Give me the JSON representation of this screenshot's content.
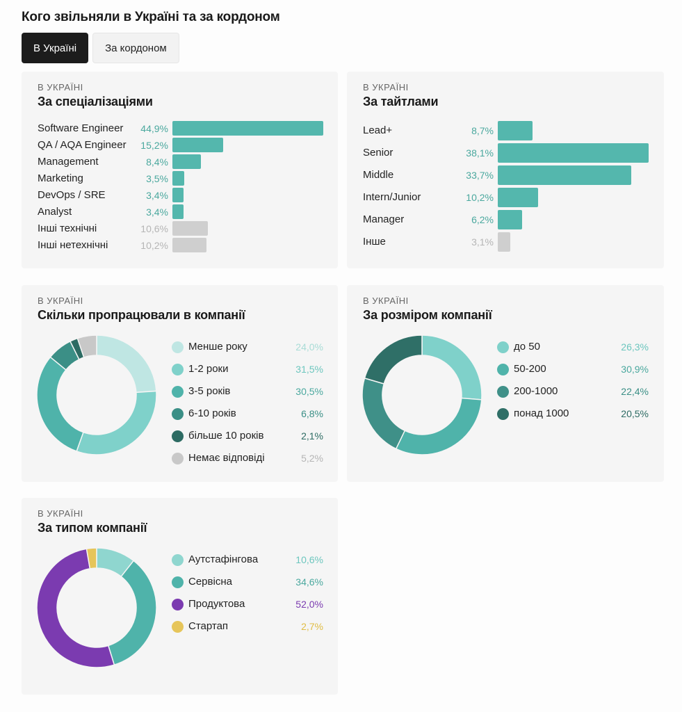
{
  "header": {
    "title": "Кого звільняли в Україні та за кордоном",
    "tabs": [
      {
        "label": "В Україні",
        "active": true
      },
      {
        "label": "За кордоном",
        "active": false
      }
    ]
  },
  "colors": {
    "teal": "#54b7ad",
    "gray": "#cfcfcf",
    "gray_text": "#b5b5b5",
    "purple": "#7b3bb0",
    "yellow": "#e6c55a"
  },
  "chart_data": [
    {
      "id": "specializations",
      "type": "bar",
      "kicker": "В УКРАЇНІ",
      "title": "За спеціалізаціями",
      "categories": [
        "Software Engineer",
        "QA / AQA Engineer",
        "Management",
        "Marketing",
        "DevOps / SRE",
        "Analyst",
        "Інші технічні",
        "Інші нетехнічні"
      ],
      "values": [
        44.9,
        15.2,
        8.4,
        3.5,
        3.4,
        3.4,
        10.6,
        10.2
      ],
      "labels": [
        "44,9%",
        "15,2%",
        "8,4%",
        "3,5%",
        "3,4%",
        "3,4%",
        "10,6%",
        "10,2%"
      ],
      "colors": [
        "#54b7ad",
        "#54b7ad",
        "#54b7ad",
        "#54b7ad",
        "#54b7ad",
        "#54b7ad",
        "#cfcfcf",
        "#cfcfcf"
      ],
      "label_colors": [
        "#4aa89e",
        "#4aa89e",
        "#4aa89e",
        "#4aa89e",
        "#4aa89e",
        "#4aa89e",
        "#b5b5b5",
        "#b5b5b5"
      ]
    },
    {
      "id": "titles",
      "type": "bar",
      "kicker": "В УКРАЇНІ",
      "title": "За тайтлами",
      "categories": [
        "Lead+",
        "Senior",
        "Middle",
        "Intern/Junior",
        "Manager",
        "Інше"
      ],
      "values": [
        8.7,
        38.1,
        33.7,
        10.2,
        6.2,
        3.1
      ],
      "labels": [
        "8,7%",
        "38,1%",
        "33,7%",
        "10,2%",
        "6,2%",
        "3,1%"
      ],
      "colors": [
        "#54b7ad",
        "#54b7ad",
        "#54b7ad",
        "#54b7ad",
        "#54b7ad",
        "#cfcfcf"
      ],
      "label_colors": [
        "#4aa89e",
        "#4aa89e",
        "#4aa89e",
        "#4aa89e",
        "#4aa89e",
        "#b5b5b5"
      ]
    },
    {
      "id": "tenure",
      "type": "pie",
      "kicker": "В УКРАЇНІ",
      "title": "Скільки пропрацювали в компанії",
      "categories": [
        "Менше року",
        "1-2 роки",
        "3-5 років",
        "6-10 років",
        "більше 10 років",
        "Немає відповіді"
      ],
      "values": [
        24.0,
        31.5,
        30.5,
        6.8,
        2.1,
        5.2
      ],
      "labels": [
        "24,0%",
        "31,5%",
        "30,5%",
        "6,8%",
        "2,1%",
        "5,2%"
      ],
      "colors": [
        "#bfe6e3",
        "#7fd1ca",
        "#4fb3aa",
        "#3b8f86",
        "#2d6b63",
        "#c8c8c8"
      ],
      "label_colors": [
        "#a8dcd6",
        "#6cc6be",
        "#4aa89e",
        "#3b8f86",
        "#2d6b63",
        "#b5b5b5"
      ]
    },
    {
      "id": "company_size",
      "type": "pie",
      "kicker": "В УКРАЇНІ",
      "title": "За розміром компанії",
      "categories": [
        "до 50",
        "50-200",
        "200-1000",
        "понад 1000"
      ],
      "values": [
        26.3,
        30.9,
        22.4,
        20.5
      ],
      "labels": [
        "26,3%",
        "30,9%",
        "22,4%",
        "20,5%"
      ],
      "colors": [
        "#7fd1ca",
        "#4fb3aa",
        "#3f9088",
        "#2f6f67"
      ],
      "label_colors": [
        "#6cc6be",
        "#4aa89e",
        "#3b8f86",
        "#2d6b63"
      ]
    },
    {
      "id": "company_type",
      "type": "pie",
      "kicker": "В УКРАЇНІ",
      "title": "За типом компанії",
      "categories": [
        "Аутстафінгова",
        "Сервісна",
        "Продуктова",
        "Стартап"
      ],
      "values": [
        10.6,
        34.6,
        52.0,
        2.7
      ],
      "labels": [
        "10,6%",
        "34,6%",
        "52,0%",
        "2,7%"
      ],
      "colors": [
        "#8fd6cf",
        "#4fb3aa",
        "#7b3bb0",
        "#e6c55a"
      ],
      "label_colors": [
        "#6cc6be",
        "#4aa89e",
        "#7b3bb0",
        "#e0bd45"
      ]
    }
  ]
}
